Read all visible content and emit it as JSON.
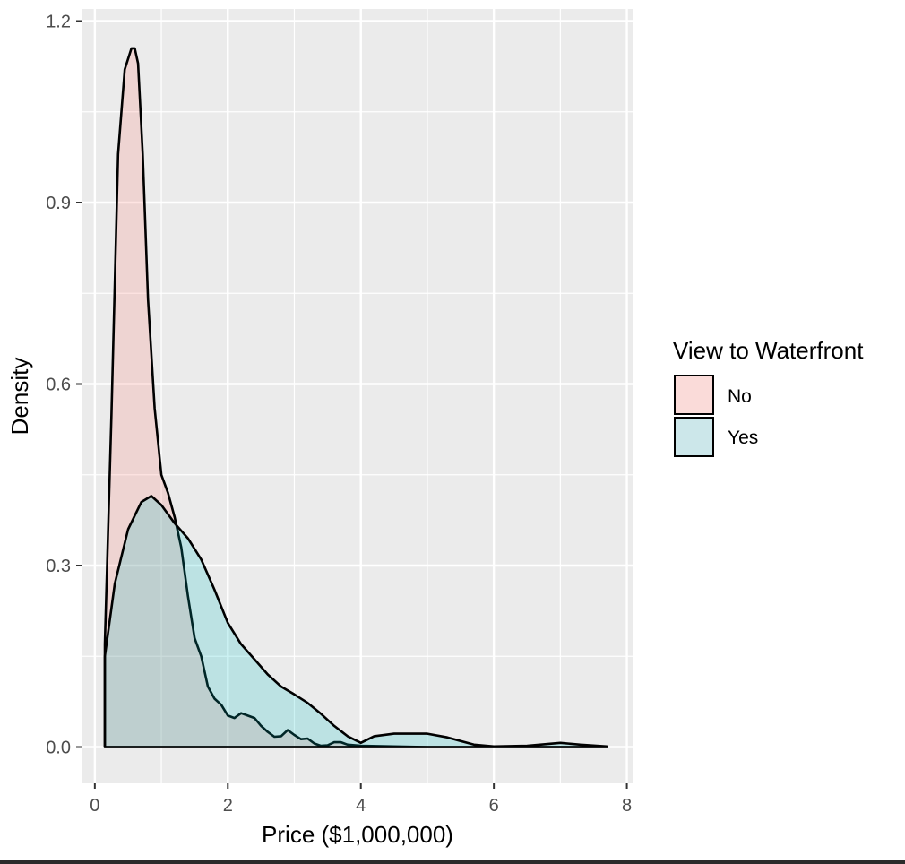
{
  "chart_data": {
    "type": "area",
    "chart_subtype": "density",
    "title": "",
    "xlabel": "Price ($1,000,000)",
    "ylabel": "Density",
    "xlim": [
      -0.2,
      8.1
    ],
    "ylim": [
      -0.06,
      1.22
    ],
    "x_ticks": [
      0,
      2,
      4,
      6,
      8
    ],
    "x_tick_labels": [
      "0",
      "2",
      "4",
      "6",
      "8"
    ],
    "y_ticks": [
      0.0,
      0.3,
      0.6,
      0.9,
      1.2
    ],
    "y_tick_labels": [
      "0.0",
      "0.3",
      "0.6",
      "0.9",
      "1.2"
    ],
    "grid": true,
    "panel_background": "#ebebeb",
    "legend": {
      "title": "View to Waterfront",
      "position": "right",
      "entries": [
        "No",
        "Yes"
      ]
    },
    "series": [
      {
        "name": "No",
        "fill": "#f8766d",
        "fill_opacity": 0.2,
        "x": [
          0.15,
          0.25,
          0.35,
          0.45,
          0.55,
          0.6,
          0.65,
          0.72,
          0.8,
          0.9,
          1.0,
          1.1,
          1.2,
          1.3,
          1.4,
          1.5,
          1.6,
          1.7,
          1.8,
          1.9,
          2.0,
          2.1,
          2.2,
          2.3,
          2.4,
          2.5,
          2.6,
          2.7,
          2.8,
          2.9,
          3.0,
          3.1,
          3.2,
          3.3,
          3.4,
          3.5,
          3.6,
          3.7,
          3.8,
          4.0,
          4.5,
          5.0,
          5.5,
          6.0,
          6.5,
          7.0,
          7.7
        ],
        "y": [
          0.17,
          0.55,
          0.98,
          1.12,
          1.155,
          1.155,
          1.13,
          0.98,
          0.74,
          0.56,
          0.45,
          0.42,
          0.38,
          0.33,
          0.25,
          0.18,
          0.15,
          0.1,
          0.08,
          0.07,
          0.052,
          0.048,
          0.056,
          0.052,
          0.048,
          0.035,
          0.025,
          0.017,
          0.018,
          0.028,
          0.02,
          0.013,
          0.014,
          0.006,
          0.002,
          0.003,
          0.008,
          0.008,
          0.004,
          0.002,
          0.001,
          0.0,
          0.0,
          0.0,
          0.0,
          0.0,
          0.0
        ]
      },
      {
        "name": "Yes",
        "fill": "#00bfc4",
        "fill_opacity": 0.2,
        "x": [
          0.15,
          0.3,
          0.5,
          0.7,
          0.85,
          1.0,
          1.2,
          1.4,
          1.6,
          1.8,
          2.0,
          2.2,
          2.4,
          2.6,
          2.8,
          3.0,
          3.2,
          3.4,
          3.6,
          3.8,
          4.0,
          4.2,
          4.5,
          5.0,
          5.3,
          5.7,
          6.0,
          6.5,
          7.0,
          7.3,
          7.7
        ],
        "y": [
          0.15,
          0.27,
          0.36,
          0.405,
          0.415,
          0.4,
          0.37,
          0.345,
          0.31,
          0.26,
          0.205,
          0.17,
          0.145,
          0.12,
          0.1,
          0.087,
          0.073,
          0.055,
          0.035,
          0.018,
          0.007,
          0.018,
          0.022,
          0.022,
          0.016,
          0.004,
          0.001,
          0.002,
          0.007,
          0.004,
          0.001
        ]
      }
    ]
  }
}
